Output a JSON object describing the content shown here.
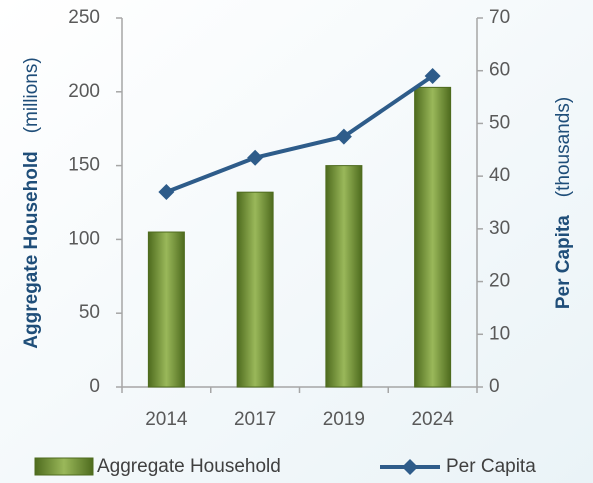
{
  "chart_data": {
    "type": "bar",
    "categories": [
      "2014",
      "2017",
      "2019",
      "2024"
    ],
    "series": [
      {
        "name": "Aggregate Household",
        "type": "bar",
        "color": "#76923c",
        "values": [
          105,
          132,
          150,
          203
        ]
      },
      {
        "name": "Per Capita",
        "type": "line",
        "axis": "y2",
        "color": "#2e5c8a",
        "values": [
          37,
          43.5,
          47.5,
          59
        ]
      }
    ],
    "y_label": "Aggregate Household",
    "y_label_unit": "(millions)",
    "y2_label": "Per Capita",
    "y2_label_unit": "(thousands)",
    "ylim": [
      0,
      250
    ],
    "yticks": [
      0,
      50,
      100,
      150,
      200,
      250
    ],
    "y2lim": [
      0,
      70
    ],
    "y2ticks": [
      0,
      10,
      20,
      30,
      40,
      50,
      60,
      70
    ],
    "grid": false,
    "legend": "bottom"
  }
}
